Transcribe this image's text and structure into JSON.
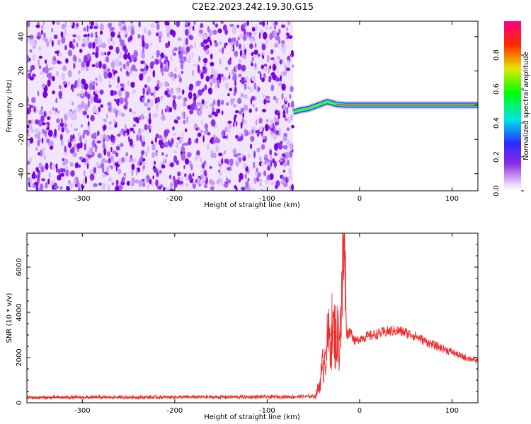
{
  "title": "C2E2.2023.242.19.30.G15",
  "chart_data": [
    {
      "type": "heatmap",
      "title": "",
      "xlabel": "Height of straight line (km)",
      "ylabel": "Frequency (Hz)",
      "xlim": [
        -360,
        128
      ],
      "ylim": [
        -50,
        49
      ],
      "x_ticks": [
        -300,
        -200,
        -100,
        0,
        100
      ],
      "y_ticks": [
        -40,
        -20,
        0,
        20,
        40
      ],
      "noise_region": {
        "x_range": [
          -360,
          -72
        ],
        "description_values": "scattered low amplitudes 0.0-0.35"
      },
      "signal_track": {
        "x": [
          -72,
          -65,
          -55,
          -45,
          -35,
          -25,
          -15,
          0,
          50,
          128
        ],
        "frequency": [
          -4,
          -3,
          -2,
          0,
          2,
          0.5,
          0,
          0,
          0,
          0
        ]
      },
      "colorbar": {
        "label": "Normalized spectral amplitude",
        "range": [
          0,
          1
        ],
        "ticks": [
          "0.0",
          "0.2",
          "0.4",
          "0.6",
          "0.8"
        ]
      }
    },
    {
      "type": "line",
      "title": "",
      "xlabel": "Height of straight line (km)",
      "ylabel": "SNR (10 * v/v)",
      "xlim": [
        -360,
        128
      ],
      "ylim": [
        0,
        7500
      ],
      "x_ticks": [
        -300,
        -200,
        -100,
        0,
        100
      ],
      "y_ticks": [
        0,
        2000,
        4000,
        6000
      ],
      "series": [
        {
          "color": "#ee2a2a",
          "x": [
            -360,
            -300,
            -200,
            -100,
            -60,
            -48,
            -44,
            -40,
            -35,
            -30,
            -26,
            -22,
            -19,
            -17,
            -14,
            -10,
            -5,
            0,
            10,
            20,
            30,
            40,
            50,
            60,
            70,
            80,
            90,
            100,
            110,
            120,
            128
          ],
          "y": [
            230,
            240,
            250,
            260,
            270,
            300,
            700,
            1600,
            2600,
            3200,
            3000,
            2800,
            4500,
            7400,
            3000,
            3200,
            2700,
            2850,
            2950,
            3050,
            3150,
            3200,
            3100,
            2950,
            2750,
            2550,
            2400,
            2250,
            2050,
            1950,
            1850
          ]
        }
      ]
    }
  ]
}
